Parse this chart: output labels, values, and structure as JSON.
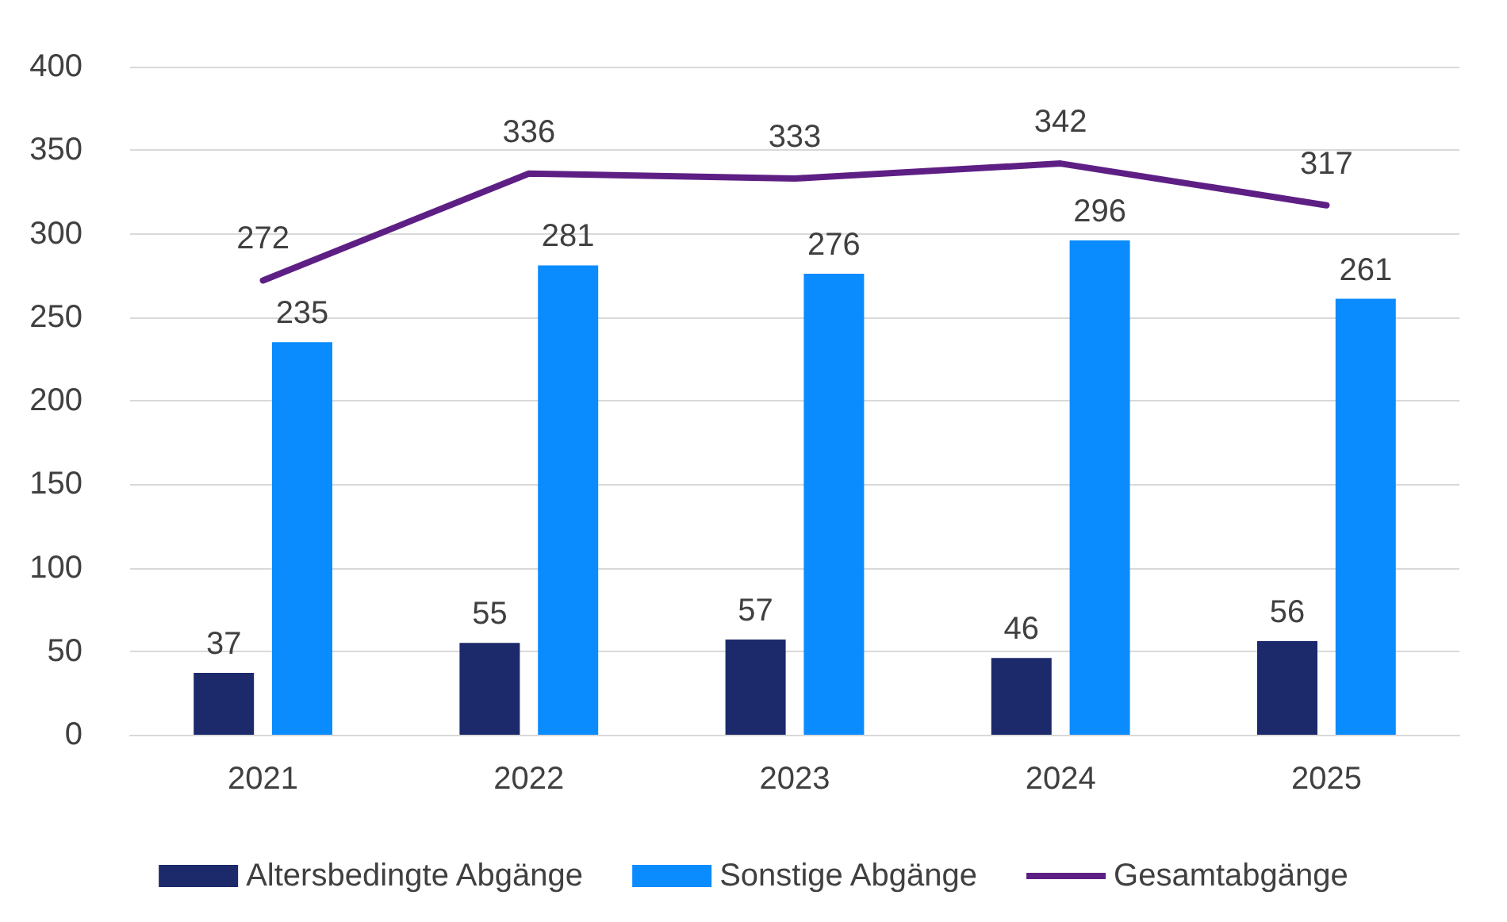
{
  "chart_data": {
    "type": "bar",
    "categories": [
      "2021",
      "2022",
      "2023",
      "2024",
      "2025"
    ],
    "series": [
      {
        "name": "Altersbedingte Abgänge",
        "color": "#1c2a6b",
        "values": [
          37,
          55,
          57,
          46,
          56
        ]
      },
      {
        "name": "Sonstige Abgänge",
        "color": "#0a8cff",
        "values": [
          235,
          281,
          276,
          296,
          261
        ]
      },
      {
        "name": "Gesamtabgänge",
        "type": "line",
        "color": "#5e1f85",
        "values": [
          272,
          336,
          333,
          342,
          317
        ],
        "marker": "none",
        "line_style": "solid"
      }
    ],
    "ylim": [
      0,
      400
    ],
    "yticks": [
      0,
      50,
      100,
      150,
      200,
      250,
      300,
      350,
      400
    ],
    "grid": "y",
    "legend": "bottom",
    "data_labels": true
  }
}
